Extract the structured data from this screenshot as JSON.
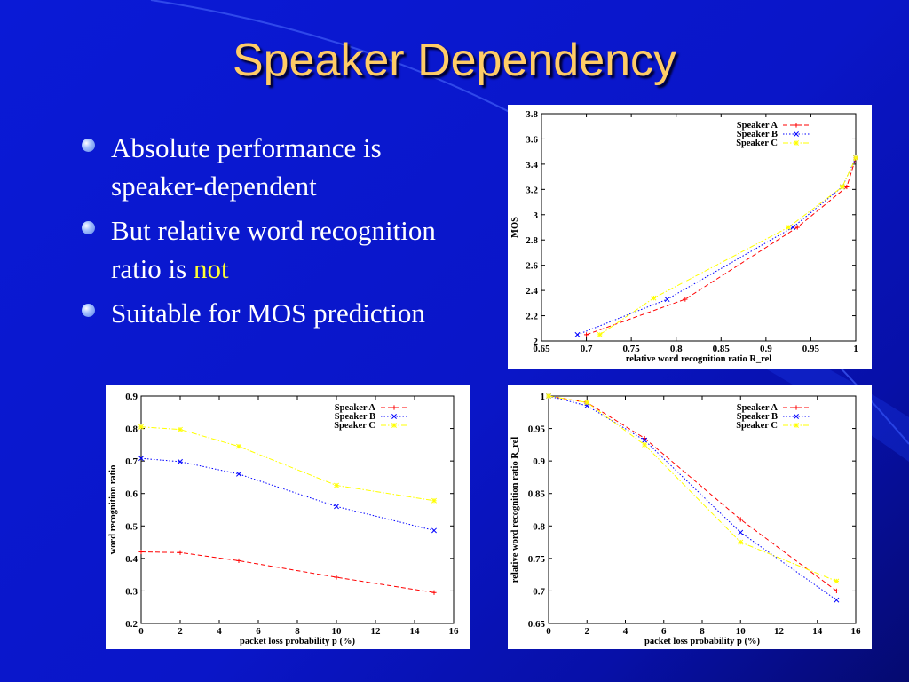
{
  "slide": {
    "title": "Speaker Dependency",
    "bullets": [
      {
        "text": "Absolute performance is speaker-dependent",
        "highlight": ""
      },
      {
        "text": "But relative word recognition ratio is ",
        "highlight": "not"
      },
      {
        "text": "Suitable for MOS prediction",
        "highlight": ""
      }
    ],
    "colors": {
      "title": "#ffcc66",
      "highlight": "#ffff33",
      "background": "#0a16c8"
    }
  },
  "chart_data": [
    {
      "type": "line",
      "xlabel": "relative word recognition ratio R_rel",
      "ylabel": "MOS",
      "xlim": [
        0.65,
        1
      ],
      "ylim": [
        2,
        3.8
      ],
      "xticks": [
        "0.65",
        "0.7",
        "0.75",
        "0.8",
        "0.85",
        "0.9",
        "0.95",
        "1"
      ],
      "yticks": [
        "2",
        "2.2",
        "2.4",
        "2.6",
        "2.8",
        "3",
        "3.2",
        "3.4",
        "3.6",
        "3.8"
      ],
      "legend_position": "top-right",
      "series": [
        {
          "name": "Speaker A",
          "color": "#ff0000",
          "marker": "+",
          "dash": "dashed",
          "x": [
            0.7,
            0.81,
            0.935,
            0.99,
            1.0
          ],
          "y": [
            2.05,
            2.33,
            2.9,
            3.22,
            3.45
          ]
        },
        {
          "name": "Speaker B",
          "color": "#0000ff",
          "marker": "x",
          "dash": "dotted",
          "x": [
            0.69,
            0.79,
            0.93,
            0.985,
            1.0
          ],
          "y": [
            2.05,
            2.33,
            2.9,
            3.22,
            3.45
          ]
        },
        {
          "name": "Speaker C",
          "color": "#ffff00",
          "marker": "*",
          "dash": "dashdot",
          "x": [
            0.715,
            0.775,
            0.925,
            0.985,
            1.0
          ],
          "y": [
            2.05,
            2.34,
            2.9,
            3.22,
            3.45
          ]
        }
      ]
    },
    {
      "type": "line",
      "xlabel": "packet loss probability p (%)",
      "ylabel": "word recognition ratio",
      "xlim": [
        0,
        16
      ],
      "ylim": [
        0.2,
        0.9
      ],
      "xticks": [
        "0",
        "2",
        "4",
        "6",
        "8",
        "10",
        "12",
        "14",
        "16"
      ],
      "yticks": [
        "0.2",
        "0.3",
        "0.4",
        "0.5",
        "0.6",
        "0.7",
        "0.8",
        "0.9"
      ],
      "legend_position": "top-right",
      "series": [
        {
          "name": "Speaker A",
          "color": "#ff0000",
          "marker": "+",
          "dash": "dashed",
          "x": [
            0,
            2,
            5,
            10,
            15
          ],
          "y": [
            0.42,
            0.418,
            0.393,
            0.342,
            0.295
          ]
        },
        {
          "name": "Speaker B",
          "color": "#0000ff",
          "marker": "x",
          "dash": "dotted",
          "x": [
            0,
            2,
            5,
            10,
            15
          ],
          "y": [
            0.708,
            0.698,
            0.66,
            0.56,
            0.486
          ]
        },
        {
          "name": "Speaker C",
          "color": "#ffff00",
          "marker": "*",
          "dash": "dashdot",
          "x": [
            0,
            2,
            5,
            10,
            15
          ],
          "y": [
            0.805,
            0.797,
            0.745,
            0.625,
            0.578
          ]
        }
      ]
    },
    {
      "type": "line",
      "xlabel": "packet loss probability p (%)",
      "ylabel": "relative word recognition ratio R_rel",
      "xlim": [
        0,
        16
      ],
      "ylim": [
        0.65,
        1
      ],
      "xticks": [
        "0",
        "2",
        "4",
        "6",
        "8",
        "10",
        "12",
        "14",
        "16"
      ],
      "yticks": [
        "0.65",
        "0.7",
        "0.75",
        "0.8",
        "0.85",
        "0.9",
        "0.95",
        "1"
      ],
      "legend_position": "top-right",
      "series": [
        {
          "name": "Speaker A",
          "color": "#ff0000",
          "marker": "+",
          "dash": "dashed",
          "x": [
            0,
            2,
            5,
            10,
            15
          ],
          "y": [
            1.0,
            0.99,
            0.935,
            0.81,
            0.7
          ]
        },
        {
          "name": "Speaker B",
          "color": "#0000ff",
          "marker": "x",
          "dash": "dotted",
          "x": [
            0,
            2,
            5,
            10,
            15
          ],
          "y": [
            1.0,
            0.985,
            0.932,
            0.79,
            0.686
          ]
        },
        {
          "name": "Speaker C",
          "color": "#ffff00",
          "marker": "*",
          "dash": "dashdot",
          "x": [
            0,
            2,
            5,
            10,
            15
          ],
          "y": [
            1.0,
            0.99,
            0.925,
            0.775,
            0.715
          ]
        }
      ]
    }
  ]
}
